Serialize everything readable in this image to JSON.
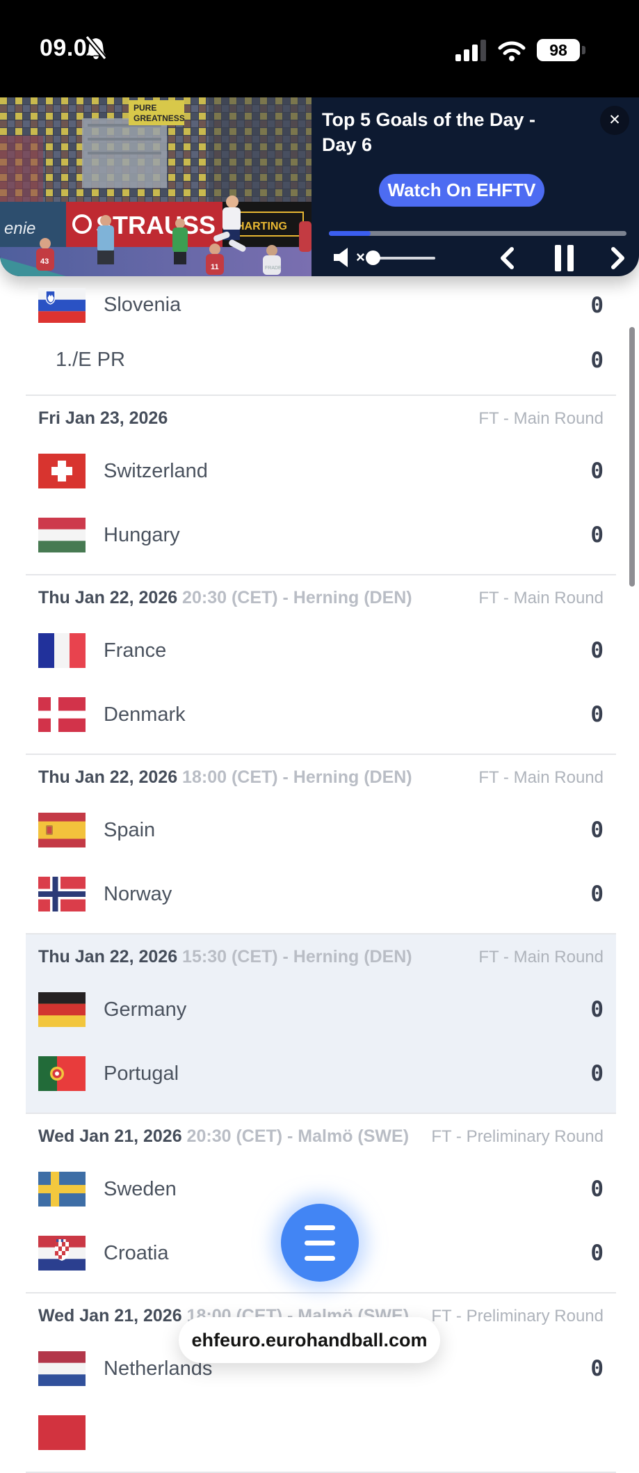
{
  "status_bar": {
    "time": "09.07",
    "battery_percent": "98",
    "icons": [
      "notifications-off-icon",
      "cellular-signal-icon",
      "wifi-icon",
      "battery-icon"
    ]
  },
  "video_overlay": {
    "title": "Top 5 Goals of the Day - Day 6",
    "watch_button_label": "Watch On EHFTV",
    "progress_percent": 14,
    "accent_color": "#4d6cf2",
    "panel_color": "#0d1a31",
    "muted": true,
    "thumbnail_texts": [
      "PURE GREATNESS",
      "enie",
      "STRAUSS",
      "HARTING",
      "43",
      "11",
      "FRADE"
    ]
  },
  "scoreboard": {
    "sections": [
      {
        "header": null,
        "highlighted": false,
        "teams": [
          {
            "name": "Slovenia",
            "flag": "si",
            "score": "0"
          },
          {
            "name": "1./E PR",
            "flag": null,
            "score": "0"
          }
        ]
      },
      {
        "header": {
          "date": "Fri Jan 23, 2026",
          "details": "",
          "status": "FT - Main Round"
        },
        "highlighted": false,
        "teams": [
          {
            "name": "Switzerland",
            "flag": "ch",
            "score": "0"
          },
          {
            "name": "Hungary",
            "flag": "hu",
            "score": "0"
          }
        ]
      },
      {
        "header": {
          "date": "Thu Jan 22, 2026",
          "details": "20:30 (CET) - Herning (DEN)",
          "status": "FT - Main Round"
        },
        "highlighted": false,
        "teams": [
          {
            "name": "France",
            "flag": "fr",
            "score": "0"
          },
          {
            "name": "Denmark",
            "flag": "dk",
            "score": "0"
          }
        ]
      },
      {
        "header": {
          "date": "Thu Jan 22, 2026",
          "details": "18:00 (CET) - Herning (DEN)",
          "status": "FT - Main Round"
        },
        "highlighted": false,
        "teams": [
          {
            "name": "Spain",
            "flag": "es",
            "score": "0"
          },
          {
            "name": "Norway",
            "flag": "no",
            "score": "0"
          }
        ]
      },
      {
        "header": {
          "date": "Thu Jan 22, 2026",
          "details": "15:30 (CET) - Herning (DEN)",
          "status": "FT - Main Round"
        },
        "highlighted": true,
        "teams": [
          {
            "name": "Germany",
            "flag": "de",
            "score": "0"
          },
          {
            "name": "Portugal",
            "flag": "pt",
            "score": "0"
          }
        ]
      },
      {
        "header": {
          "date": "Wed Jan 21, 2026",
          "details": "20:30 (CET) - Malmö (SWE)",
          "status": "FT - Preliminary Round"
        },
        "highlighted": false,
        "teams": [
          {
            "name": "Sweden",
            "flag": "se",
            "score": "0"
          },
          {
            "name": "Croatia",
            "flag": "hr",
            "score": "0"
          }
        ]
      },
      {
        "header": {
          "date": "Wed Jan 21, 2026",
          "details": "18:00 (CET) - Malmö (SWE)",
          "status": "FT - Preliminary Round"
        },
        "highlighted": false,
        "teams": [
          {
            "name": "Netherlands",
            "flag": "nl",
            "score": "0"
          },
          {
            "name": "",
            "flag": "partial",
            "score": ""
          }
        ]
      }
    ],
    "highlight_color": "#edf1f7"
  },
  "fab": {
    "icon": "menu",
    "color": "#4285f4"
  },
  "link_pill": {
    "text": "ehfeuro.eurohandball.com"
  }
}
